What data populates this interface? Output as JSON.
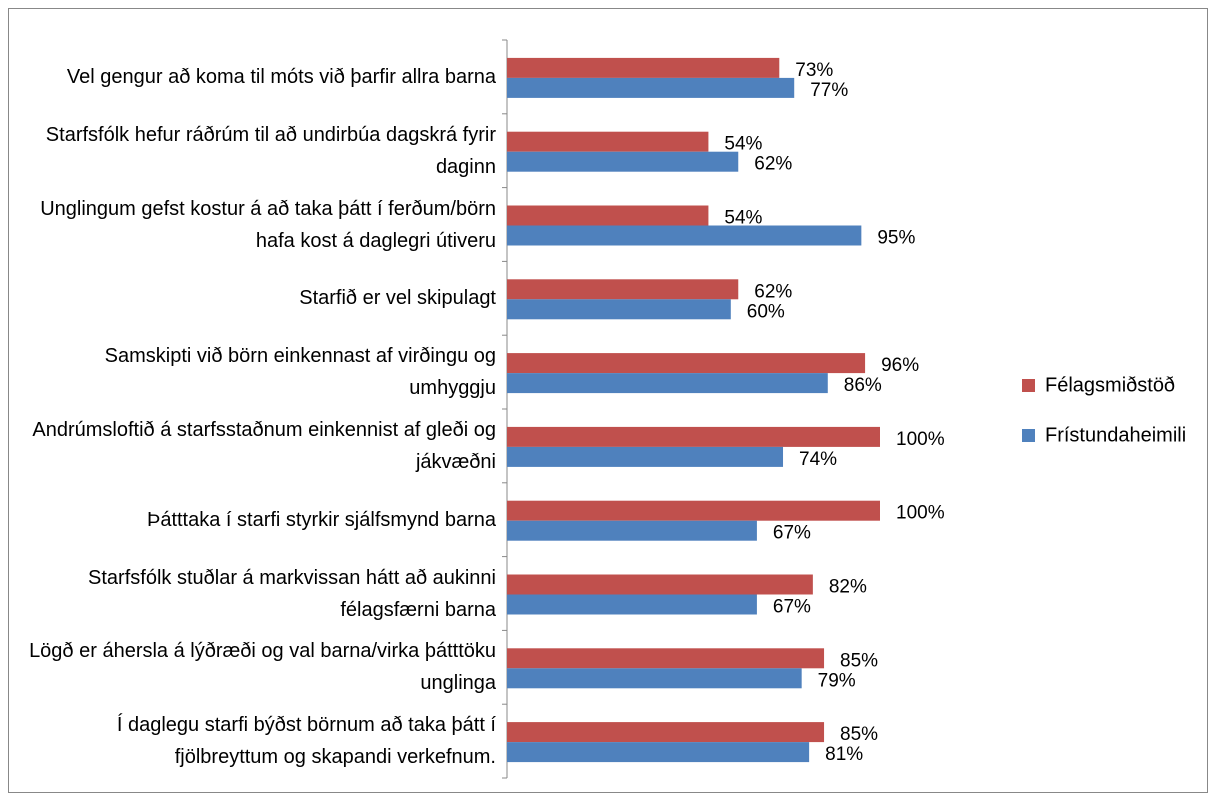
{
  "chart_data": {
    "type": "bar",
    "orientation": "horizontal",
    "categories": [
      "Vel gengur að koma til móts við þarfir allra barna",
      "Starfsfólk hefur ráðrúm til að undirbúa dagskrá fyrir daginn",
      "Unglingum gefst kostur á að taka þátt í ferðum/börn hafa kost á daglegri útiveru",
      "Starfið er vel skipulagt",
      "Samskipti við börn einkennast af virðingu og umhyggju",
      "Andrúmsloftið á starfsstaðnum einkennist af gleði og jákvæðni",
      "Þátttaka í starfi  styrkir sjálfsmynd barna",
      "Starfsfólk stuðlar á markvissan hátt að aukinni félagsfærni barna",
      "Lögð er áhersla á lýðræði og val barna/virka þátttöku unglinga",
      "Í daglegu starfi býðst börnum að taka þátt í fjölbreyttum og skapandi verkefnum."
    ],
    "series": [
      {
        "name": "Félagsmiðstöð",
        "color": "#c0504d",
        "values": [
          73,
          54,
          54,
          62,
          96,
          100,
          100,
          82,
          85,
          85
        ],
        "value_labels": [
          "73%",
          "54%",
          "54%",
          "62%",
          "96%",
          "100%",
          "100%",
          "82%",
          "85%",
          "85%"
        ]
      },
      {
        "name": "Frístundaheimili",
        "color": "#4f81bd",
        "values": [
          77,
          62,
          95,
          60,
          86,
          74,
          67,
          67,
          79,
          81
        ],
        "value_labels": [
          "77%",
          "62%",
          "95%",
          "60%",
          "86%",
          "74%",
          "67%",
          "67%",
          "79%",
          "81%"
        ]
      }
    ],
    "legend": "right"
  }
}
